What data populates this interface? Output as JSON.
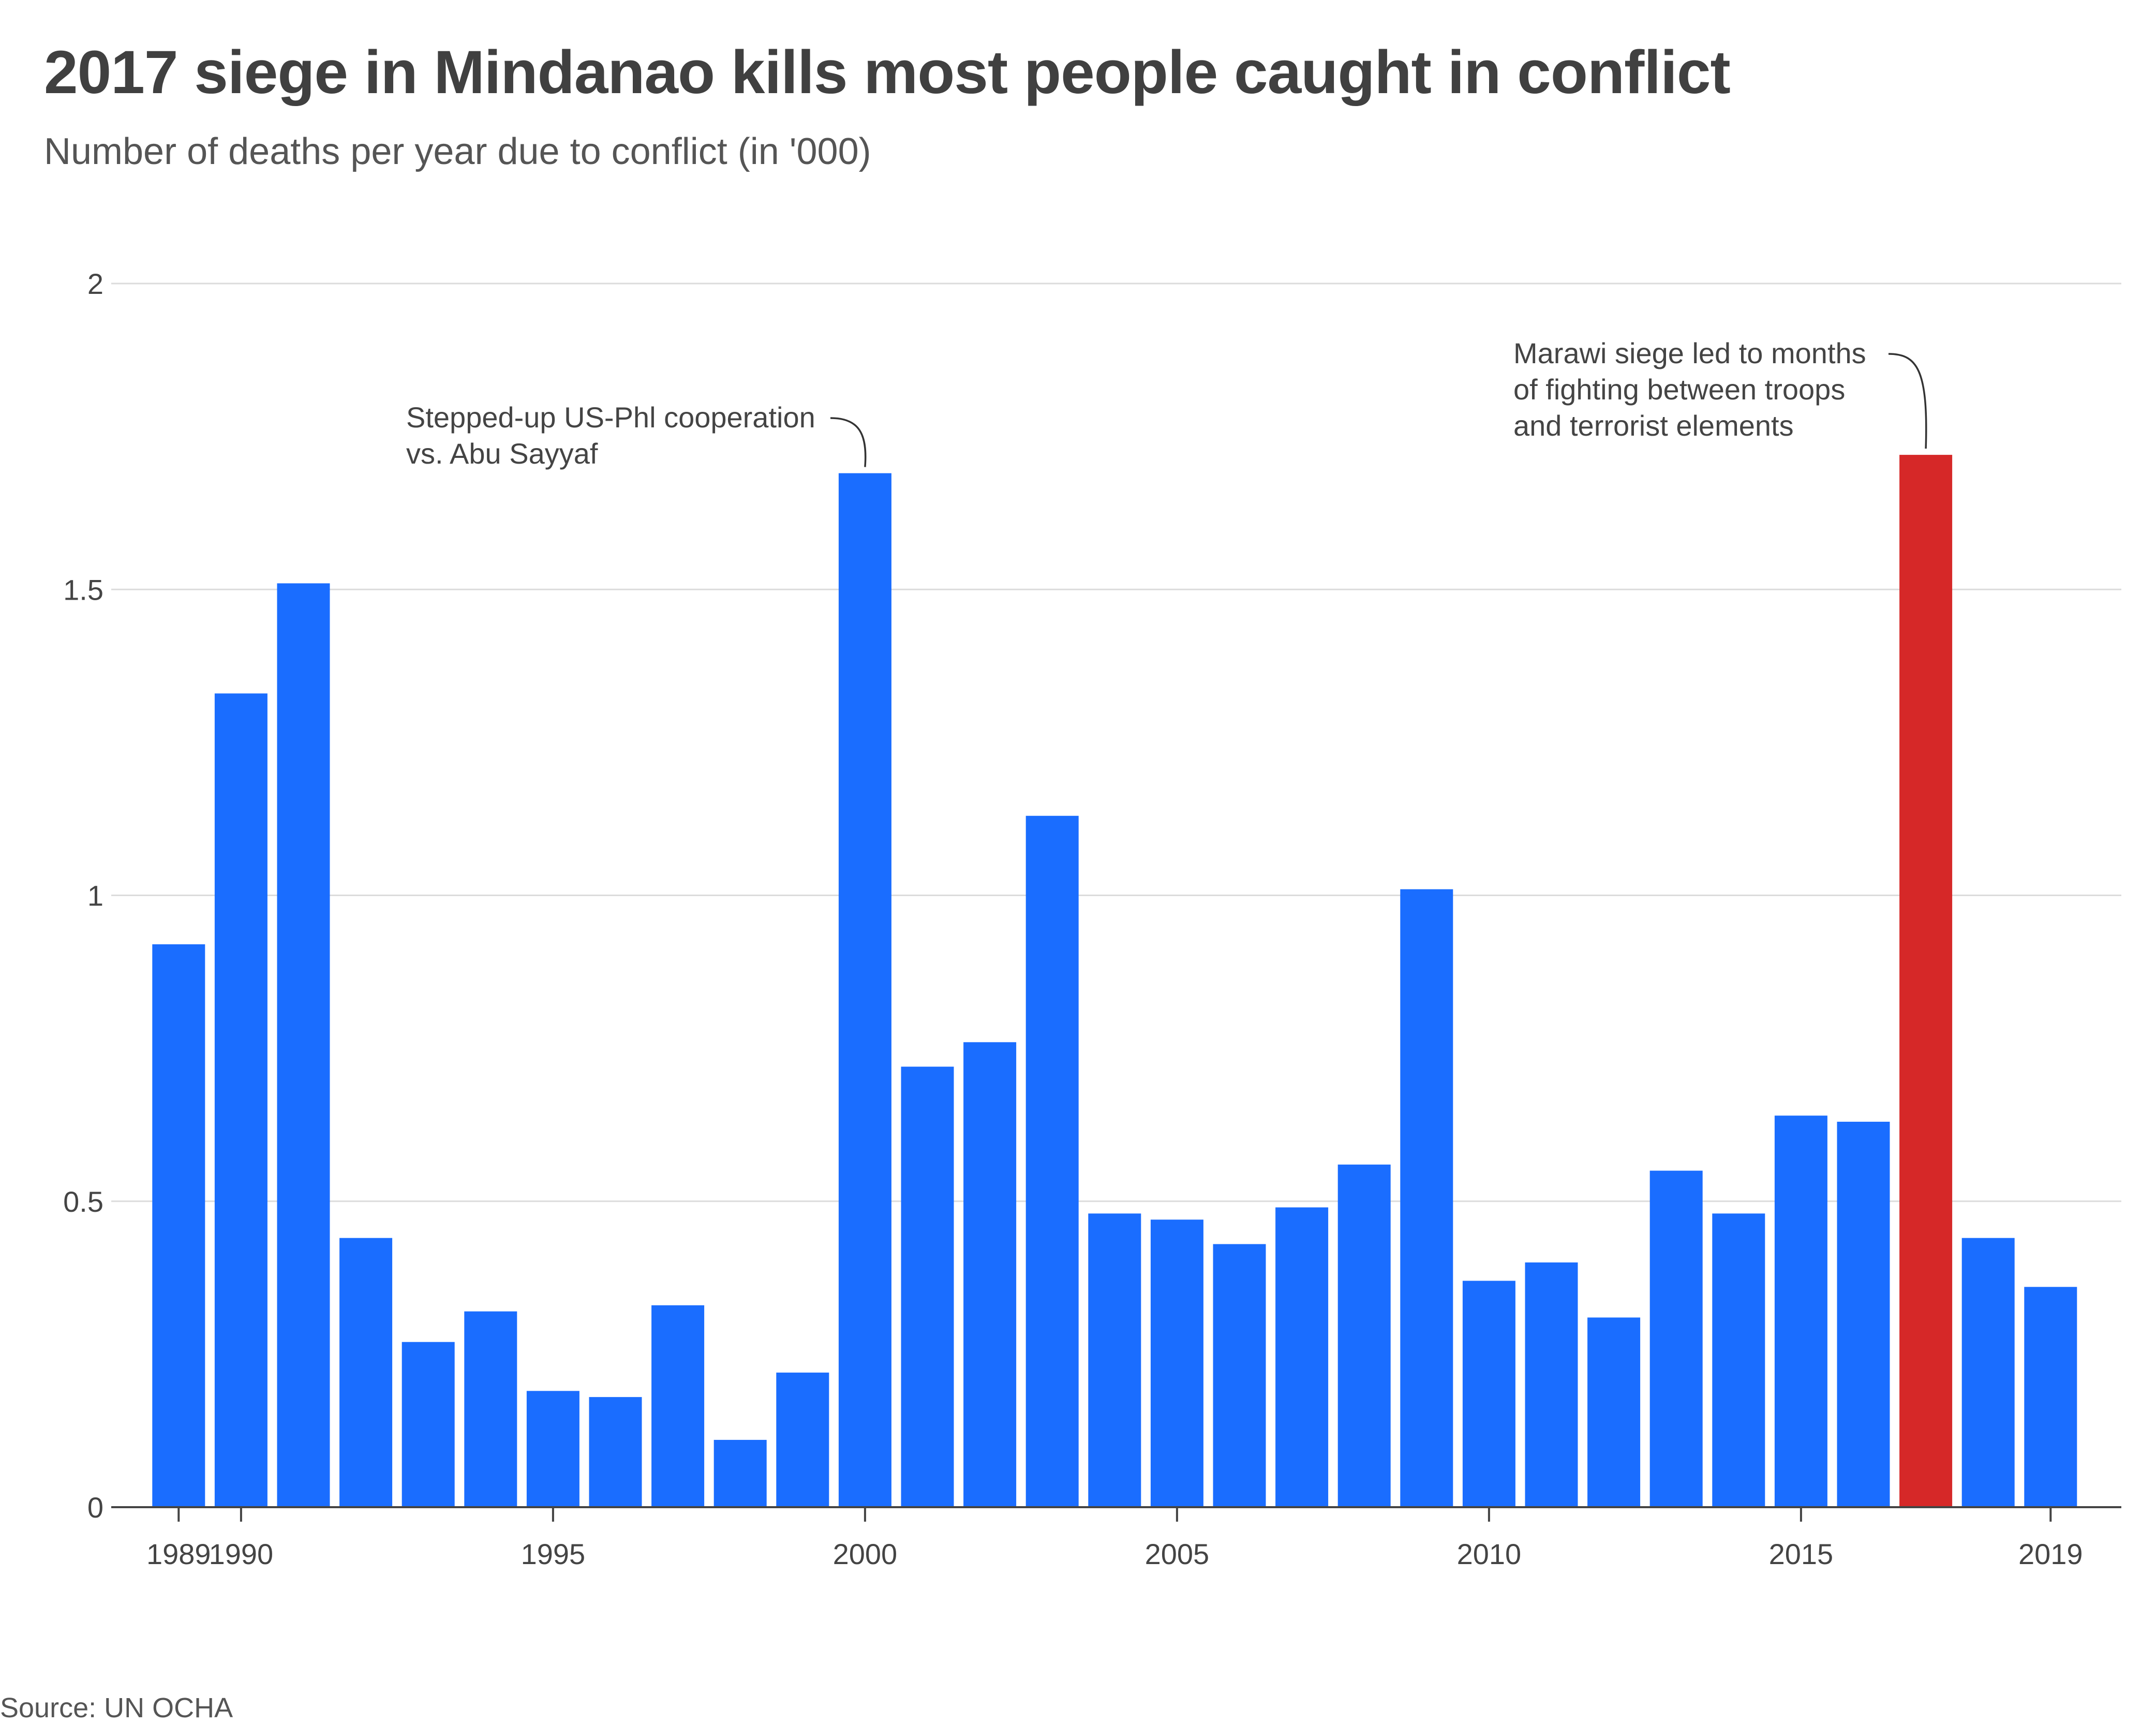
{
  "chart_data": {
    "type": "bar",
    "title": "2017 siege in Mindanao kills most people caught in conflict",
    "subtitle": "Number of deaths per year due to conflict (in '000)",
    "xlabel": "",
    "ylabel": "",
    "categories": [
      "1989",
      "1990",
      "1991",
      "1992",
      "1993",
      "1994",
      "1995",
      "1996",
      "1997",
      "1998",
      "1999",
      "2000",
      "2001",
      "2002",
      "2003",
      "2004",
      "2005",
      "2006",
      "2007",
      "2008",
      "2009",
      "2010",
      "2011",
      "2012",
      "2013",
      "2014",
      "2015",
      "2016",
      "2017",
      "2018",
      "2019"
    ],
    "values": [
      0.92,
      1.33,
      1.51,
      0.44,
      0.27,
      0.32,
      0.19,
      0.18,
      0.33,
      0.11,
      0.22,
      1.69,
      0.72,
      0.76,
      1.13,
      0.48,
      0.47,
      0.43,
      0.49,
      0.56,
      1.01,
      0.37,
      0.4,
      0.31,
      0.55,
      0.48,
      0.64,
      0.63,
      1.72,
      0.44,
      0.36
    ],
    "highlight_category": "2017",
    "bar_color": "#1a6dff",
    "highlight_color": "#d62828",
    "ylim": [
      0,
      2
    ],
    "y_ticks": [
      0,
      0.5,
      1,
      1.5,
      2
    ],
    "y_tick_labels": [
      "0",
      "0.5",
      "1",
      "1.5",
      "2"
    ],
    "x_tick_labels": [
      {
        "year": "1989",
        "label": "1989"
      },
      {
        "year": "1990",
        "label": "1990"
      },
      {
        "year": "1995",
        "label": "1995"
      },
      {
        "year": "2000",
        "label": "2000"
      },
      {
        "year": "2005",
        "label": "2005"
      },
      {
        "year": "2010",
        "label": "2010"
      },
      {
        "year": "2015",
        "label": "2015"
      },
      {
        "year": "2019",
        "label": "2019"
      }
    ],
    "grid": true,
    "annotations": [
      {
        "target": "2000",
        "lines": [
          "Stepped-up US-Phl cooperation",
          "vs. Abu Sayyaf"
        ]
      },
      {
        "target": "2017",
        "lines": [
          "Marawi siege led to months",
          "of fighting between troops",
          "and terrorist elements"
        ]
      }
    ],
    "source": "Source: UN OCHA"
  }
}
